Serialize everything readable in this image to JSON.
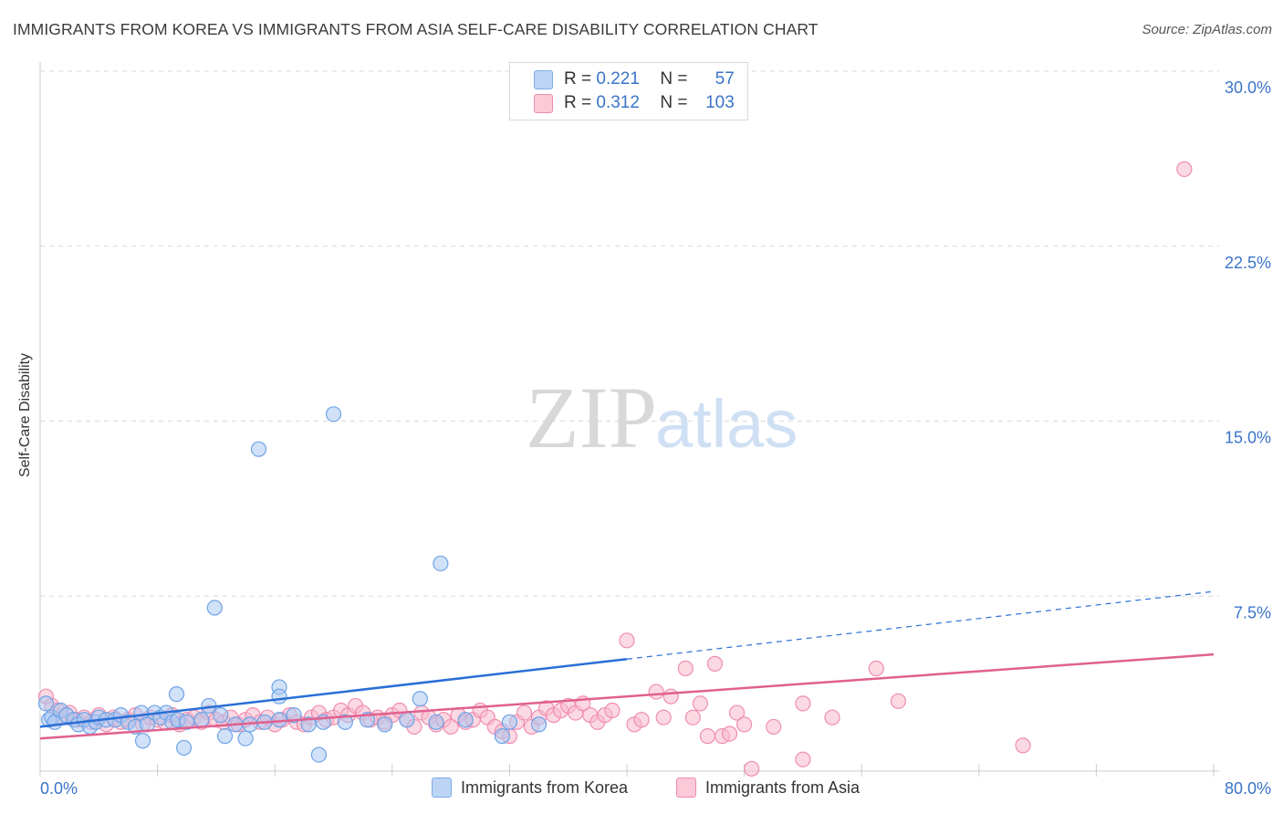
{
  "title": "IMMIGRANTS FROM KOREA VS IMMIGRANTS FROM ASIA SELF-CARE DISABILITY CORRELATION CHART",
  "source": "Source: ZipAtlas.com",
  "watermark": {
    "zip": "ZIP",
    "atlas": "atlas"
  },
  "legend": [
    {
      "r_label": "R =",
      "r_value": "0.221",
      "n_label": "N =",
      "n_value": "57",
      "color": "#a9c8f2"
    },
    {
      "r_label": "R =",
      "r_value": "0.312",
      "n_label": "N =",
      "n_value": "103",
      "color": "#f7b9cc"
    }
  ],
  "chart_data": {
    "type": "scatter",
    "title": "IMMIGRANTS FROM KOREA VS IMMIGRANTS FROM ASIA SELF-CARE DISABILITY CORRELATION CHART",
    "xlabel": "",
    "ylabel": "Self-Care Disability",
    "xlim": [
      0,
      80
    ],
    "ylim": [
      0,
      30
    ],
    "x_tick_labels": [
      "0.0%",
      "80.0%"
    ],
    "y_ticks": [
      7.5,
      15.0,
      22.5,
      30.0
    ],
    "y_tick_labels": [
      "7.5%",
      "15.0%",
      "22.5%",
      "30.0%"
    ],
    "grid": true,
    "series": [
      {
        "name": "Immigrants from Korea",
        "color": "#6fa3e6",
        "fill": "#a9c8f2",
        "line_color": "#2a6fd6",
        "trend": {
          "x0": 0,
          "y0": 1.9,
          "x1": 40,
          "y1": 4.8,
          "dashed_to_x": 80,
          "dashed_to_y": 7.7
        },
        "points": [
          [
            0.4,
            2.9
          ],
          [
            0.6,
            2.2
          ],
          [
            0.8,
            2.3
          ],
          [
            1.0,
            2.1
          ],
          [
            1.4,
            2.6
          ],
          [
            1.8,
            2.4
          ],
          [
            2.3,
            2.2
          ],
          [
            2.6,
            2.0
          ],
          [
            3.0,
            2.2
          ],
          [
            3.4,
            1.9
          ],
          [
            3.8,
            2.1
          ],
          [
            4.0,
            2.3
          ],
          [
            4.5,
            2.2
          ],
          [
            5.1,
            2.2
          ],
          [
            5.5,
            2.4
          ],
          [
            6.0,
            2.1
          ],
          [
            6.5,
            1.9
          ],
          [
            6.9,
            2.5
          ],
          [
            7.3,
            2.0
          ],
          [
            7.8,
            2.5
          ],
          [
            8.2,
            2.3
          ],
          [
            8.6,
            2.5
          ],
          [
            9.0,
            2.1
          ],
          [
            9.4,
            2.2
          ],
          [
            10.0,
            2.1
          ],
          [
            11.0,
            2.2
          ],
          [
            11.5,
            2.8
          ],
          [
            12.3,
            2.4
          ],
          [
            13.3,
            2.0
          ],
          [
            14.3,
            2.0
          ],
          [
            15.3,
            2.1
          ],
          [
            16.3,
            2.2
          ],
          [
            17.3,
            2.4
          ],
          [
            18.3,
            2.0
          ],
          [
            19.3,
            2.1
          ],
          [
            20.8,
            2.1
          ],
          [
            22.3,
            2.2
          ],
          [
            23.5,
            2.0
          ],
          [
            25.0,
            2.2
          ],
          [
            27.0,
            2.1
          ],
          [
            29.0,
            2.2
          ],
          [
            32.0,
            2.1
          ],
          [
            34.0,
            2.0
          ],
          [
            9.3,
            3.3
          ],
          [
            16.3,
            3.6
          ],
          [
            16.3,
            3.2
          ],
          [
            25.9,
            3.1
          ],
          [
            11.9,
            7.0
          ],
          [
            14.9,
            13.8
          ],
          [
            20.0,
            15.3
          ],
          [
            27.3,
            8.9
          ],
          [
            7.0,
            1.3
          ],
          [
            9.8,
            1.0
          ],
          [
            12.6,
            1.5
          ],
          [
            14.0,
            1.4
          ],
          [
            19.0,
            0.7
          ],
          [
            31.5,
            1.5
          ]
        ]
      },
      {
        "name": "Immigrants from Asia",
        "color": "#f08db0",
        "fill": "#f7b9cc",
        "line_color": "#e0608f",
        "trend": {
          "x0": 0,
          "y0": 1.4,
          "x1": 80,
          "y1": 5.0
        },
        "points": [
          [
            0.4,
            3.2
          ],
          [
            0.8,
            2.8
          ],
          [
            1.2,
            2.6
          ],
          [
            1.6,
            2.3
          ],
          [
            2.0,
            2.5
          ],
          [
            2.5,
            2.2
          ],
          [
            3.0,
            2.3
          ],
          [
            3.5,
            2.1
          ],
          [
            4.0,
            2.4
          ],
          [
            4.5,
            2.0
          ],
          [
            5.0,
            2.3
          ],
          [
            5.5,
            2.1
          ],
          [
            6.0,
            2.2
          ],
          [
            6.5,
            2.4
          ],
          [
            7.0,
            2.0
          ],
          [
            7.5,
            2.3
          ],
          [
            8.0,
            2.2
          ],
          [
            8.5,
            2.1
          ],
          [
            9.0,
            2.4
          ],
          [
            9.5,
            2.0
          ],
          [
            10.0,
            2.2
          ],
          [
            10.5,
            2.3
          ],
          [
            11.0,
            2.1
          ],
          [
            11.5,
            2.5
          ],
          [
            12.0,
            2.2
          ],
          [
            12.5,
            2.1
          ],
          [
            13.0,
            2.3
          ],
          [
            13.5,
            2.0
          ],
          [
            14.0,
            2.2
          ],
          [
            14.5,
            2.4
          ],
          [
            15.0,
            2.1
          ],
          [
            15.5,
            2.3
          ],
          [
            16.0,
            2.0
          ],
          [
            16.5,
            2.2
          ],
          [
            17.0,
            2.4
          ],
          [
            17.5,
            2.1
          ],
          [
            18.0,
            2.0
          ],
          [
            18.5,
            2.3
          ],
          [
            19.0,
            2.5
          ],
          [
            19.5,
            2.2
          ],
          [
            20.0,
            2.3
          ],
          [
            20.5,
            2.6
          ],
          [
            21.0,
            2.4
          ],
          [
            21.5,
            2.8
          ],
          [
            22.0,
            2.5
          ],
          [
            22.5,
            2.2
          ],
          [
            23.0,
            2.3
          ],
          [
            23.5,
            2.1
          ],
          [
            24.0,
            2.4
          ],
          [
            24.5,
            2.6
          ],
          [
            25.0,
            2.2
          ],
          [
            25.5,
            1.9
          ],
          [
            26.0,
            2.5
          ],
          [
            26.5,
            2.3
          ],
          [
            27.0,
            2.0
          ],
          [
            27.5,
            2.2
          ],
          [
            28.0,
            1.9
          ],
          [
            28.5,
            2.4
          ],
          [
            29.0,
            2.1
          ],
          [
            29.5,
            2.2
          ],
          [
            30.0,
            2.6
          ],
          [
            30.5,
            2.3
          ],
          [
            31.0,
            1.9
          ],
          [
            31.5,
            1.7
          ],
          [
            32.0,
            1.5
          ],
          [
            32.5,
            2.1
          ],
          [
            33.0,
            2.5
          ],
          [
            33.5,
            1.9
          ],
          [
            34.0,
            2.3
          ],
          [
            34.5,
            2.7
          ],
          [
            35.0,
            2.4
          ],
          [
            35.5,
            2.6
          ],
          [
            36.0,
            2.8
          ],
          [
            36.5,
            2.5
          ],
          [
            37.0,
            2.9
          ],
          [
            37.5,
            2.4
          ],
          [
            38.0,
            2.1
          ],
          [
            38.5,
            2.4
          ],
          [
            39.0,
            2.6
          ],
          [
            40.0,
            5.6
          ],
          [
            40.5,
            2.0
          ],
          [
            41.0,
            2.2
          ],
          [
            42.0,
            3.4
          ],
          [
            42.5,
            2.3
          ],
          [
            43.0,
            3.2
          ],
          [
            44.0,
            4.4
          ],
          [
            44.5,
            2.3
          ],
          [
            45.0,
            2.9
          ],
          [
            45.5,
            1.5
          ],
          [
            46.0,
            4.6
          ],
          [
            46.5,
            1.5
          ],
          [
            47.0,
            1.6
          ],
          [
            47.5,
            2.5
          ],
          [
            48.0,
            2.0
          ],
          [
            48.5,
            0.1
          ],
          [
            50.0,
            1.9
          ],
          [
            52.0,
            0.5
          ],
          [
            52.0,
            2.9
          ],
          [
            54.0,
            2.3
          ],
          [
            57.0,
            4.4
          ],
          [
            58.5,
            3.0
          ],
          [
            67.0,
            1.1
          ],
          [
            78.0,
            25.8
          ]
        ]
      }
    ]
  }
}
